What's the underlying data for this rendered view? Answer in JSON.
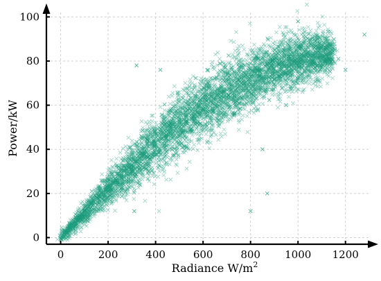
{
  "chart_data": {
    "type": "scatter",
    "marker": "x",
    "color": "#1a9c7c",
    "xlabel": "Radiance W/m",
    "xlabel_sup": "2",
    "ylabel": "Power/kW",
    "xlim": [
      -60,
      1300
    ],
    "ylim": [
      -3,
      102
    ],
    "xticks": [
      0,
      200,
      400,
      600,
      800,
      1000,
      1200
    ],
    "yticks": [
      0,
      20,
      40,
      60,
      80,
      100
    ],
    "grid": true,
    "series": [
      {
        "points": [
          [
            0,
            0
          ],
          [
            8,
            1
          ],
          [
            15,
            2
          ],
          [
            22,
            3
          ],
          [
            30,
            4
          ],
          [
            40,
            5
          ],
          [
            50,
            6
          ],
          [
            60,
            7
          ],
          [
            75,
            9
          ],
          [
            90,
            11
          ],
          [
            100,
            12
          ],
          [
            120,
            14
          ],
          [
            140,
            16
          ],
          [
            160,
            19
          ],
          [
            180,
            21
          ],
          [
            200,
            23
          ],
          [
            220,
            25
          ],
          [
            250,
            28
          ],
          [
            280,
            31
          ],
          [
            300,
            33
          ],
          [
            330,
            36
          ],
          [
            360,
            39
          ],
          [
            400,
            42
          ],
          [
            430,
            45
          ],
          [
            460,
            47
          ],
          [
            500,
            50
          ],
          [
            530,
            53
          ],
          [
            560,
            55
          ],
          [
            600,
            58
          ],
          [
            640,
            61
          ],
          [
            680,
            64
          ],
          [
            720,
            67
          ],
          [
            760,
            70
          ],
          [
            800,
            73
          ],
          [
            840,
            75
          ],
          [
            880,
            77
          ],
          [
            920,
            79
          ],
          [
            960,
            81
          ],
          [
            1000,
            83
          ],
          [
            1040,
            84
          ],
          [
            1080,
            85
          ],
          [
            1120,
            86
          ],
          [
            320,
            78
          ],
          [
            420,
            76
          ],
          [
            620,
            76
          ],
          [
            1000,
            98
          ],
          [
            1280,
            92
          ],
          [
            1170,
            81
          ],
          [
            1120,
            80
          ],
          [
            870,
            20
          ],
          [
            800,
            12
          ],
          [
            310,
            12
          ],
          [
            1200,
            76
          ],
          [
            1090,
            85
          ],
          [
            1000,
            70
          ],
          [
            950,
            60
          ],
          [
            850,
            40
          ]
        ],
        "envelope": [
          [
            0,
            0,
            1.5
          ],
          [
            100,
            11,
            3
          ],
          [
            200,
            22,
            5
          ],
          [
            300,
            32,
            7
          ],
          [
            400,
            42,
            8.5
          ],
          [
            500,
            51,
            9
          ],
          [
            600,
            59,
            9.5
          ],
          [
            700,
            66,
            9.5
          ],
          [
            800,
            72,
            9
          ],
          [
            900,
            77,
            8
          ],
          [
            1000,
            80,
            8
          ],
          [
            1100,
            83,
            7
          ],
          [
            1150,
            84,
            6
          ]
        ]
      }
    ]
  }
}
